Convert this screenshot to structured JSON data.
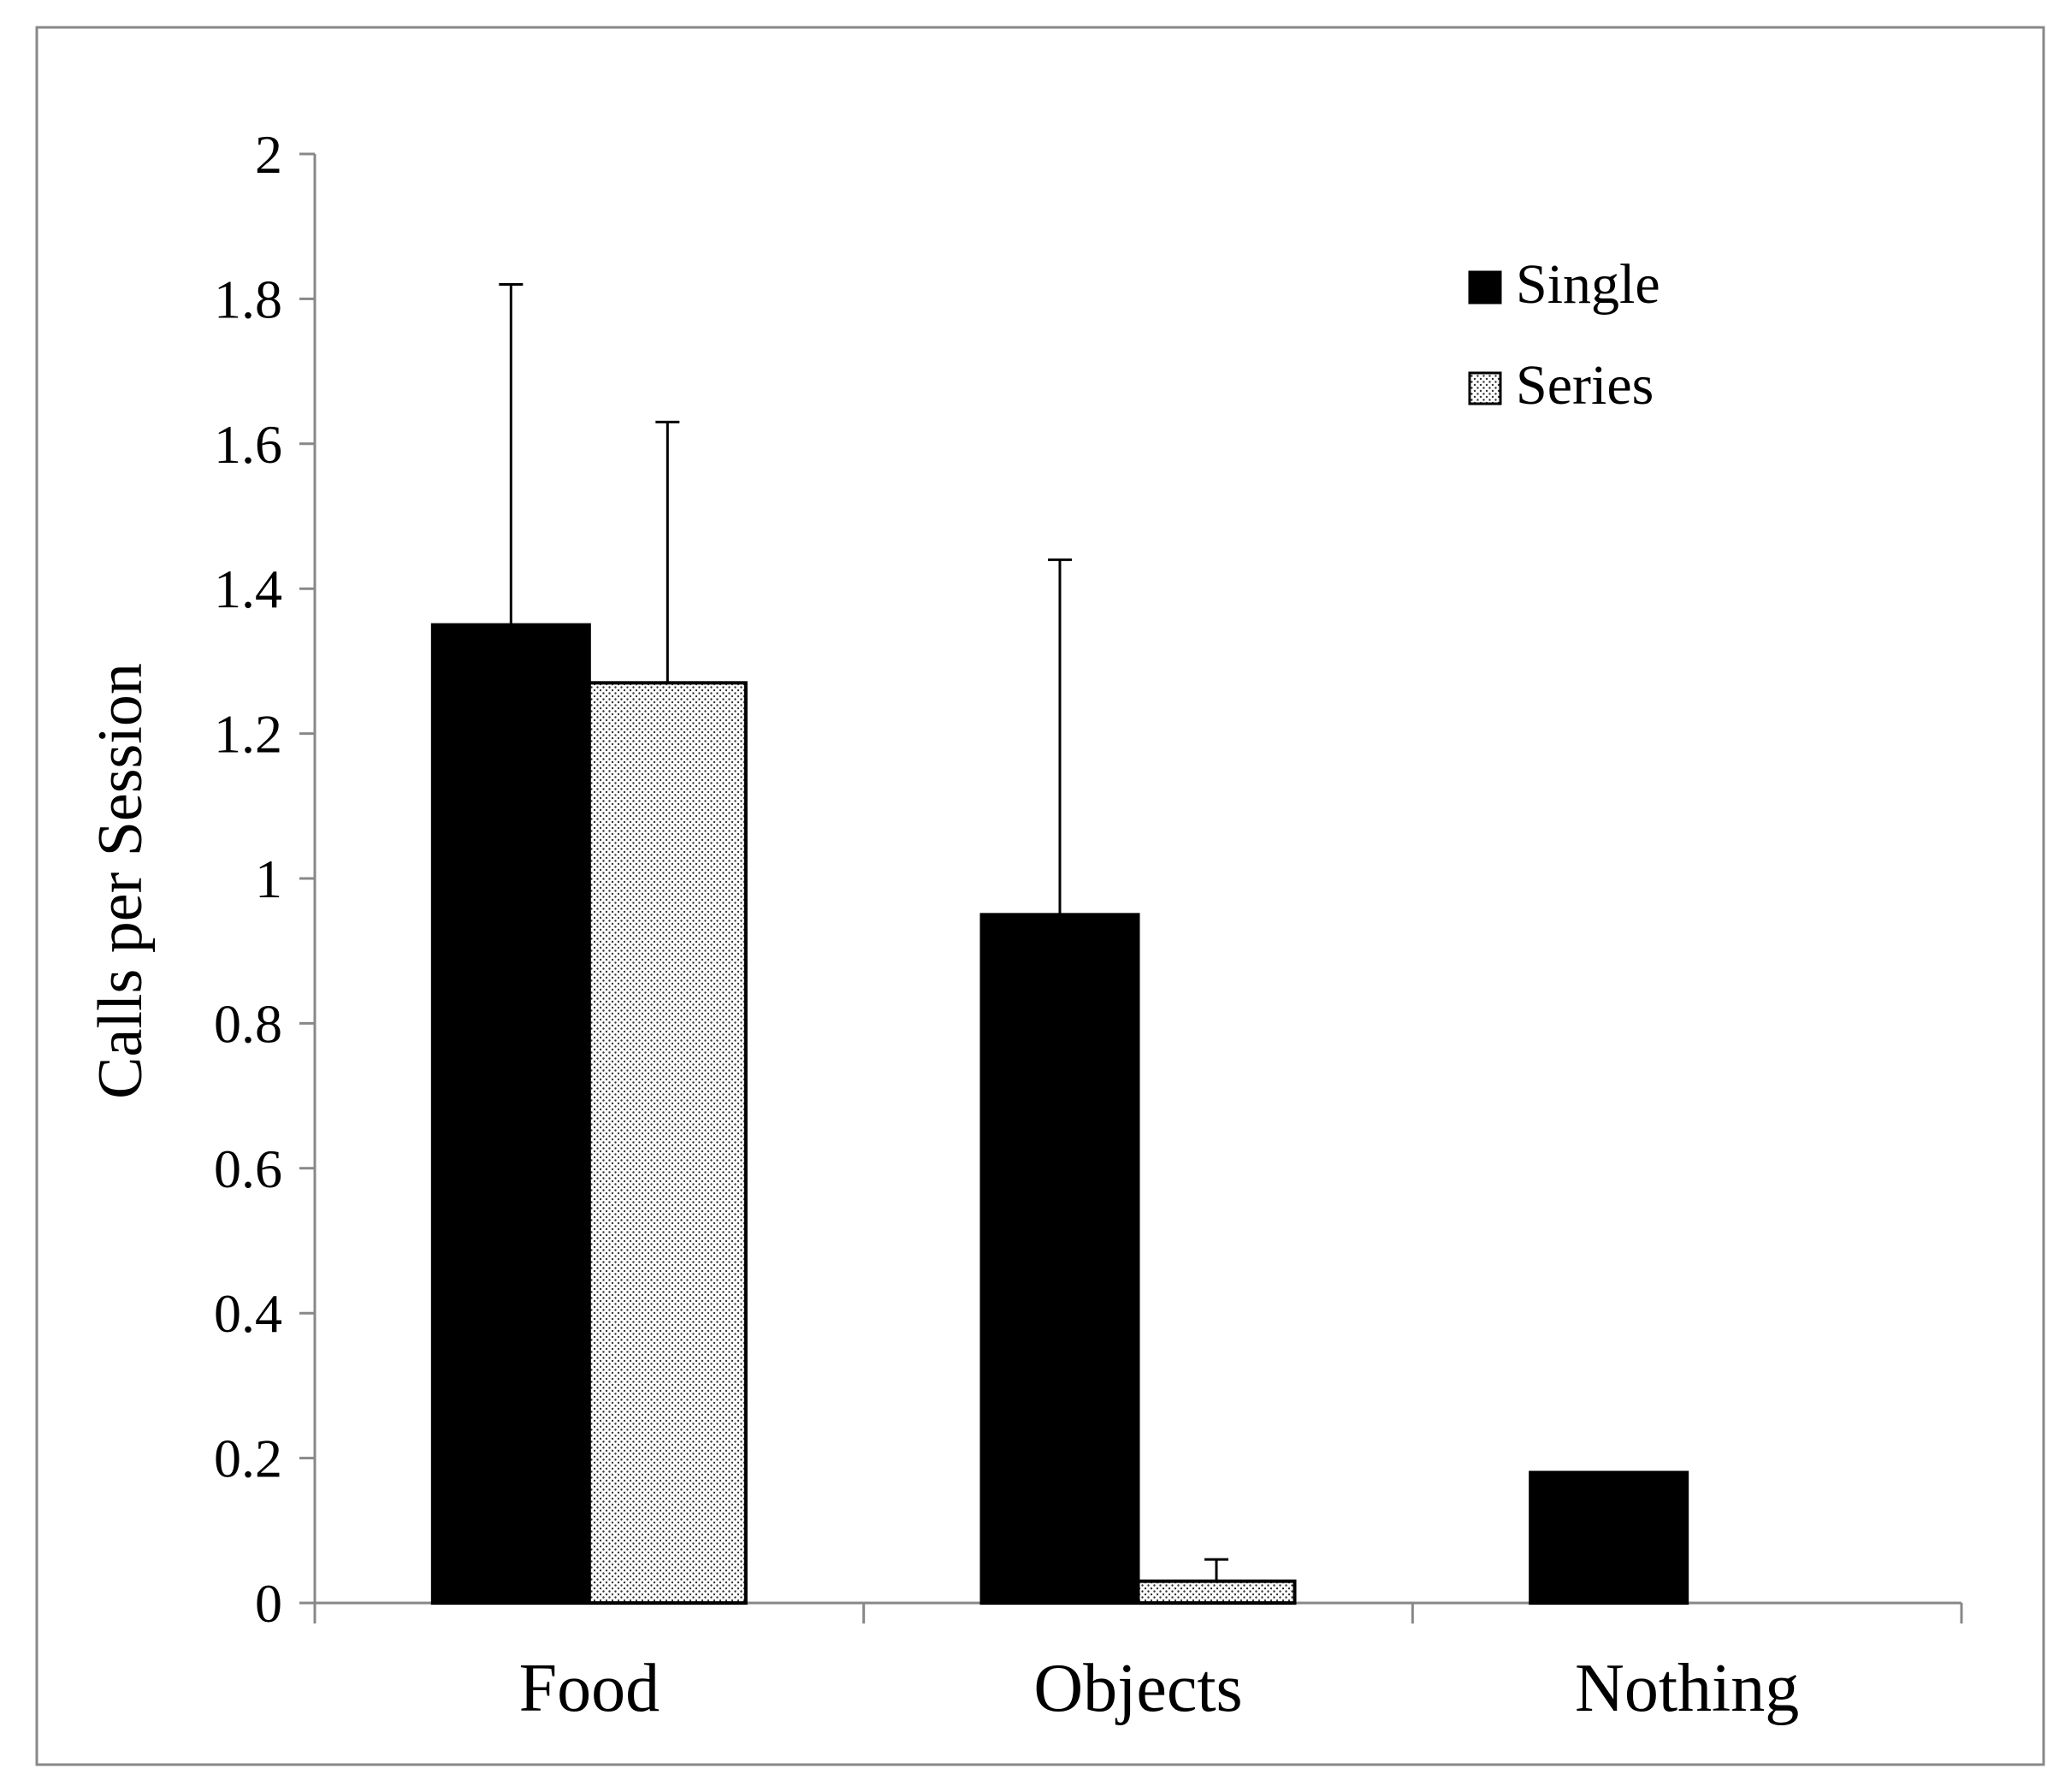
{
  "chart_data": {
    "type": "bar",
    "categories": [
      "Food",
      "Objects",
      "Nothing"
    ],
    "series": [
      {
        "name": "Single",
        "values": [
          1.35,
          0.95,
          0.18
        ],
        "error_upper": [
          1.82,
          1.44,
          null
        ],
        "fill": "#000000",
        "pattern": "solid"
      },
      {
        "name": "Series",
        "values": [
          1.27,
          0.03,
          0.0
        ],
        "error_upper": [
          1.63,
          0.06,
          null
        ],
        "fill": "#ffffff",
        "pattern": "dotted"
      }
    ],
    "ylabel": "Calls per Session",
    "xlabel": "",
    "ylim": [
      0,
      2
    ],
    "yticks": [
      0,
      0.2,
      0.4,
      0.6,
      0.8,
      1,
      1.2,
      1.4,
      1.6,
      1.8,
      2
    ],
    "ytick_labels": [
      "0",
      "0.2",
      "0.4",
      "0.6",
      "0.8",
      "1",
      "1.2",
      "1.4",
      "1.6",
      "1.8",
      "2"
    ],
    "grid": false,
    "legend_position": "top-right"
  }
}
